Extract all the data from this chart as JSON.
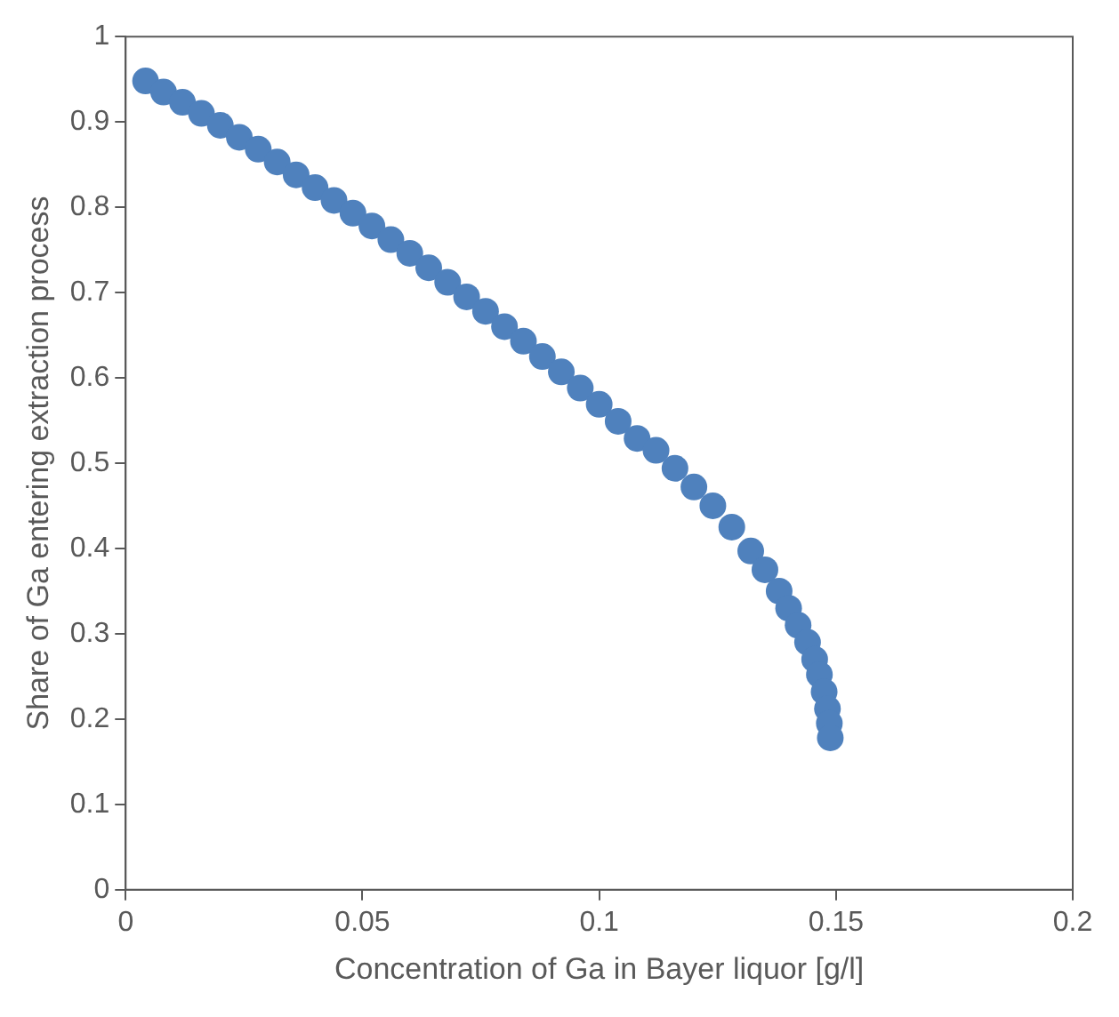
{
  "chart_data": {
    "type": "scatter",
    "xlabel": "Concentration of Ga in Bayer liquor [g/l]",
    "ylabel": "Share of Ga entering extraction process",
    "marker": "circle",
    "grid": false,
    "x": [
      0.0042,
      0.008,
      0.012,
      0.016,
      0.02,
      0.024,
      0.028,
      0.032,
      0.036,
      0.04,
      0.044,
      0.048,
      0.052,
      0.056,
      0.06,
      0.064,
      0.068,
      0.072,
      0.076,
      0.08,
      0.084,
      0.088,
      0.092,
      0.096,
      0.1,
      0.104,
      0.108,
      0.112,
      0.116,
      0.12,
      0.124,
      0.128,
      0.132,
      0.135,
      0.138,
      0.14,
      0.142,
      0.144,
      0.1455,
      0.1465,
      0.1475,
      0.1482,
      0.1486,
      0.1488
    ],
    "series": [
      {
        "color": "#4f81bd",
        "values": [
          0.948,
          0.935,
          0.923,
          0.91,
          0.896,
          0.882,
          0.868,
          0.853,
          0.838,
          0.823,
          0.808,
          0.793,
          0.778,
          0.762,
          0.746,
          0.729,
          0.712,
          0.695,
          0.678,
          0.66,
          0.643,
          0.625,
          0.607,
          0.588,
          0.569,
          0.549,
          0.529,
          0.515,
          0.494,
          0.472,
          0.45,
          0.425,
          0.397,
          0.375,
          0.35,
          0.33,
          0.31,
          0.29,
          0.27,
          0.252,
          0.232,
          0.212,
          0.195,
          0.178
        ]
      }
    ],
    "xlim": [
      0,
      0.2
    ],
    "xticks": [
      0,
      0.05,
      0.1,
      0.15,
      0.2
    ],
    "ylim": [
      0,
      1
    ],
    "yticks": [
      0,
      0.1,
      0.2,
      0.3,
      0.4,
      0.5,
      0.6,
      0.7,
      0.8,
      0.9,
      1
    ]
  }
}
